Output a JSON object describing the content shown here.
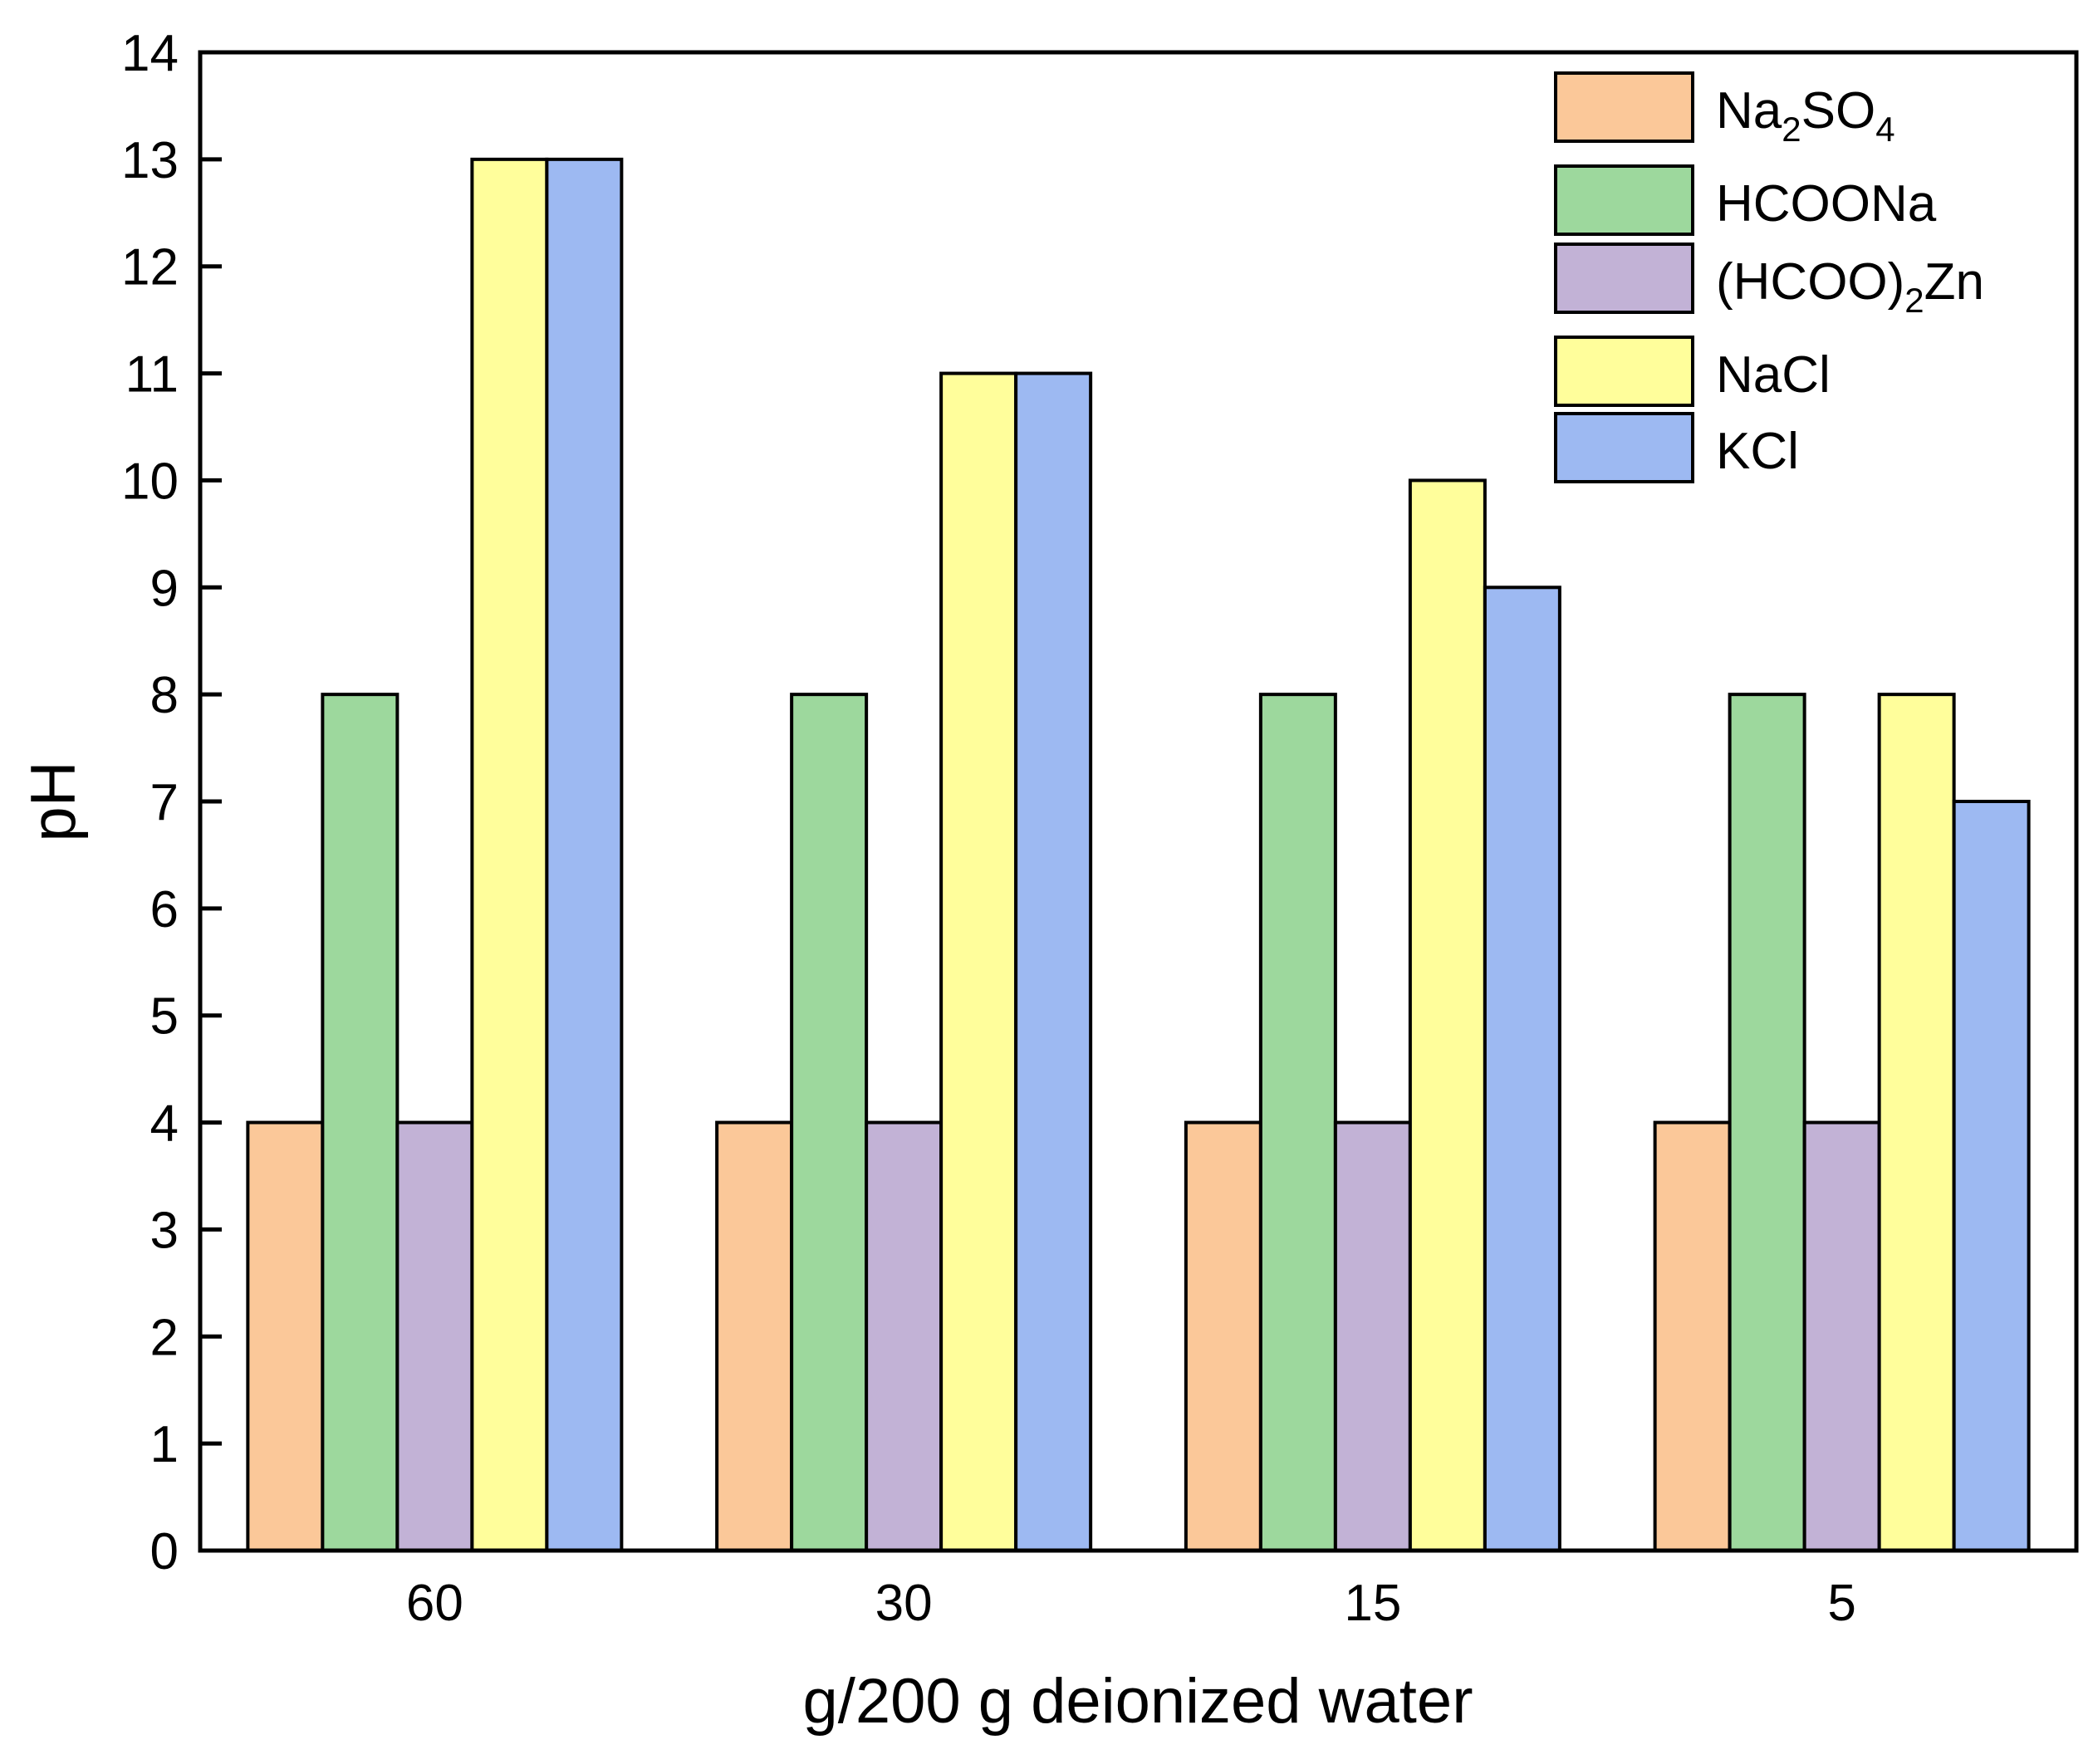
{
  "chart_data": {
    "type": "bar",
    "title": "",
    "xlabel": "g/200 g deionized water",
    "ylabel": "pH",
    "categories": [
      "60",
      "30",
      "15",
      "5"
    ],
    "ylim": [
      0,
      14
    ],
    "yticks": [
      "0",
      "1",
      "2",
      "3",
      "4",
      "5",
      "6",
      "7",
      "8",
      "9",
      "10",
      "11",
      "12",
      "13",
      "14"
    ],
    "grid": false,
    "legend_position": "top-right",
    "series": [
      {
        "name": "Na2SO4",
        "label_main": "Na",
        "label_sub1": "2",
        "label_mid": "SO",
        "label_sub2": "4",
        "color": "#FBC899",
        "values": [
          4,
          4,
          4,
          4
        ]
      },
      {
        "name": "HCOONa",
        "label_main": "HCOONa",
        "color": "#9DD89D",
        "values": [
          8,
          8,
          8,
          8
        ]
      },
      {
        "name": "(HCOO)2Zn",
        "label_main": "(HCOO)",
        "label_sub1": "2",
        "label_mid": "Zn",
        "color": "#C2B2D6",
        "values": [
          4,
          4,
          4,
          4
        ]
      },
      {
        "name": "NaCl",
        "label_main": "NaCl",
        "color": "#FFFE9B",
        "values": [
          13,
          11,
          10,
          8
        ]
      },
      {
        "name": "KCl",
        "label_main": "KCl",
        "color": "#9DB9F2",
        "values": [
          13,
          11,
          9,
          7
        ]
      }
    ]
  }
}
